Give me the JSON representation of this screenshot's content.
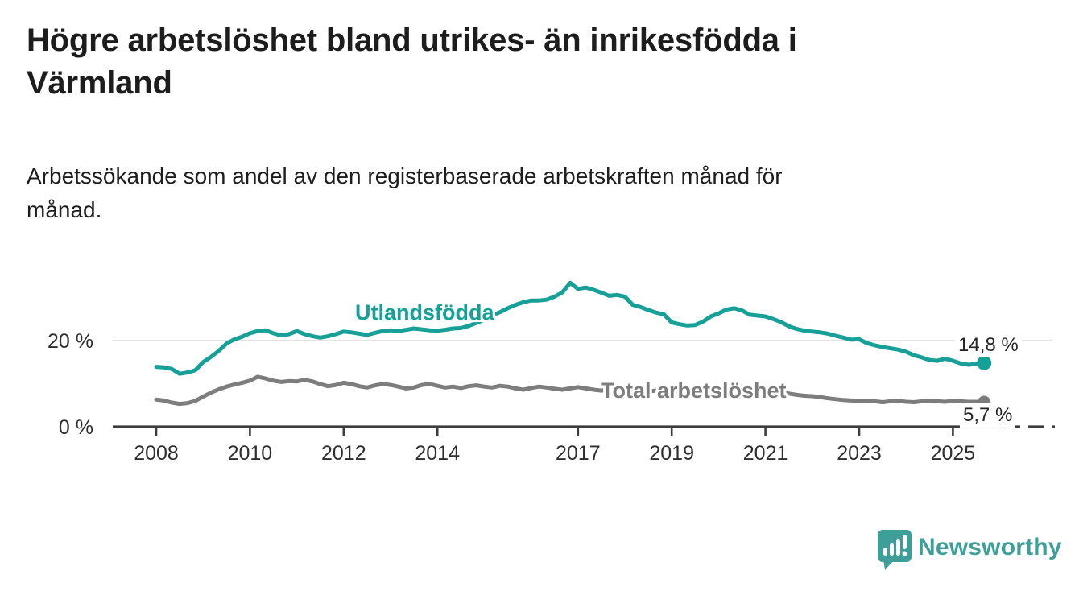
{
  "header": {
    "title_lines": [
      "Högre arbetslöshet bland utrikes- än inrikesfödda i",
      "Värmland"
    ],
    "subtitle_lines": [
      "Arbetssökande som andel av den registerbaserade arbetskraften månad för",
      "månad."
    ]
  },
  "chart_data": {
    "type": "line",
    "title": "Högre arbetslöshet bland utrikes- än inrikesfödda i Värmland",
    "subtitle": "Arbetssökande som andel av den registerbaserade arbetskraften månad för månad.",
    "unit": "%",
    "xlabel": "",
    "ylabel": "",
    "xlim": [
      2008.0,
      2025.67
    ],
    "ylim": [
      0,
      36
    ],
    "grid": "horizontal-20-only",
    "legend_position": "inline-labels",
    "x_start": 2008.0,
    "x_step_years": 0.166667,
    "x_ticks": [
      {
        "year": 2008,
        "label": "2008"
      },
      {
        "year": 2010,
        "label": "2010"
      },
      {
        "year": 2012,
        "label": "2012"
      },
      {
        "year": 2014,
        "label": "2014"
      },
      {
        "year": 2017,
        "label": "2017"
      },
      {
        "year": 2019,
        "label": "2019"
      },
      {
        "year": 2021,
        "label": "2021"
      },
      {
        "year": 2023,
        "label": "2023"
      },
      {
        "year": 2025,
        "label": "2025"
      }
    ],
    "y_ticks": [
      {
        "value": 20,
        "label": "20 %"
      },
      {
        "value": 0,
        "label": "0 %"
      }
    ],
    "series": [
      {
        "name": "Utlandsfödda",
        "color": "#16A098",
        "end_label": "14,8 %",
        "end_value": 14.8,
        "values": [
          13.9,
          13.8,
          13.4,
          12.3,
          12.6,
          13.1,
          15.0,
          16.2,
          17.6,
          19.3,
          20.3,
          20.9,
          21.7,
          22.2,
          22.4,
          21.7,
          21.2,
          21.5,
          22.2,
          21.5,
          21.0,
          20.7,
          21.0,
          21.5,
          22.1,
          21.9,
          21.6,
          21.3,
          21.8,
          22.2,
          22.4,
          22.2,
          22.5,
          22.8,
          22.6,
          22.4,
          22.3,
          22.5,
          22.8,
          22.9,
          23.4,
          24.1,
          24.9,
          25.8,
          26.6,
          27.5,
          28.3,
          28.9,
          29.3,
          29.3,
          29.5,
          30.2,
          31.2,
          33.4,
          32.0,
          32.3,
          31.8,
          31.1,
          30.4,
          30.6,
          30.2,
          28.3,
          27.8,
          27.1,
          26.5,
          26.1,
          24.2,
          23.8,
          23.5,
          23.6,
          24.4,
          25.6,
          26.3,
          27.2,
          27.5,
          27.0,
          26.0,
          25.8,
          25.6,
          25.0,
          24.3,
          23.3,
          22.7,
          22.3,
          22.1,
          21.9,
          21.6,
          21.1,
          20.7,
          20.2,
          20.3,
          19.4,
          18.9,
          18.5,
          18.2,
          17.9,
          17.4,
          16.6,
          16.1,
          15.5,
          15.3,
          15.8,
          15.3,
          14.7,
          14.4,
          14.6,
          14.8
        ]
      },
      {
        "name": "Total arbetslöshet",
        "color": "#7D7D7D",
        "end_label": "5,7 %",
        "end_value": 5.7,
        "values": [
          6.3,
          6.1,
          5.6,
          5.3,
          5.5,
          6.0,
          7.0,
          7.9,
          8.7,
          9.3,
          9.8,
          10.2,
          10.7,
          11.6,
          11.2,
          10.7,
          10.4,
          10.6,
          10.5,
          10.9,
          10.5,
          9.9,
          9.4,
          9.7,
          10.2,
          9.9,
          9.4,
          9.1,
          9.6,
          9.9,
          9.7,
          9.3,
          8.9,
          9.1,
          9.7,
          9.9,
          9.5,
          9.1,
          9.3,
          9.0,
          9.4,
          9.6,
          9.3,
          9.1,
          9.5,
          9.3,
          8.9,
          8.6,
          9.0,
          9.3,
          9.1,
          8.8,
          8.6,
          8.9,
          9.2,
          8.9,
          8.6,
          8.4,
          8.7,
          8.9,
          8.7,
          8.5,
          8.3,
          8.2,
          8.4,
          8.5,
          8.3,
          8.1,
          8.0,
          8.1,
          8.3,
          8.6,
          8.9,
          9.3,
          9.5,
          9.3,
          9.0,
          8.8,
          8.6,
          8.3,
          8.0,
          7.7,
          7.4,
          7.2,
          7.1,
          6.9,
          6.6,
          6.4,
          6.2,
          6.1,
          6.0,
          6.0,
          5.9,
          5.7,
          5.9,
          6.0,
          5.8,
          5.7,
          5.9,
          6.0,
          5.9,
          5.8,
          6.0,
          5.9,
          5.8,
          5.8,
          5.7
        ]
      }
    ],
    "colors": {
      "gridline": "#D8D8D8",
      "axis": "#3C3C3C",
      "tick_text": "#2E2E2E"
    }
  },
  "branding": {
    "logo_text": "Newsworthy",
    "logo_color": "#3E9E98"
  }
}
